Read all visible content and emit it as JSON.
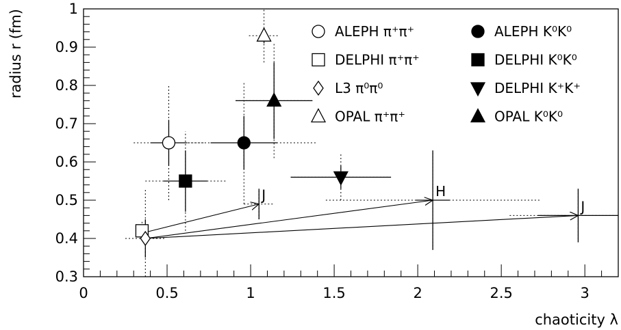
{
  "chart_data": {
    "type": "scatter",
    "xlabel": "chaoticity λ",
    "ylabel": "radius r (fm)",
    "xlim": [
      0,
      3.2
    ],
    "ylim": [
      0.3,
      1.0
    ],
    "xticks": [
      0,
      0.5,
      1,
      1.5,
      2,
      2.5,
      3
    ],
    "xtick_labels": [
      "0",
      "0.5",
      "1",
      "1.5",
      "2",
      "2.5",
      "3"
    ],
    "yticks": [
      0.3,
      0.4,
      0.5,
      0.6,
      0.7,
      0.8,
      0.9,
      1.0
    ],
    "ytick_labels": [
      "0.3",
      "0.4",
      "0.5",
      "0.6",
      "0.7",
      "0.8",
      "0.9",
      "1"
    ],
    "grid": false,
    "legend_position": "top-right",
    "series": [
      {
        "name": "ALEPH π⁺π⁺",
        "marker": "circle-open",
        "x": 0.51,
        "y": 0.65,
        "stat": {
          "xerr": 0.11,
          "yerr": 0.06
        },
        "syst": {
          "xerr": 0.21,
          "yerr": 0.15
        }
      },
      {
        "name": "DELPHI π⁺π⁺",
        "marker": "square-open",
        "x": 0.35,
        "y": 0.42,
        "stat": {
          "xerr": 0.02,
          "yerr": 0.015
        },
        "syst": {
          "xerr": 0.03,
          "yerr": 0.025
        }
      },
      {
        "name": "L3 π⁰π⁰",
        "marker": "diamond-open",
        "x": 0.37,
        "y": 0.4,
        "stat": {
          "xerr": 0.03,
          "yerr": 0.05
        },
        "syst": {
          "xerr": 0.12,
          "yerr": 0.13
        }
      },
      {
        "name": "OPAL π⁺π⁺",
        "marker": "triangle-up-open",
        "x": 1.08,
        "y": 0.93,
        "stat": {
          "xerr": 0.02,
          "yerr": 0.02
        },
        "syst": {
          "xerr": 0.09,
          "yerr": 0.07
        }
      },
      {
        "name": "ALEPH K⁰K⁰",
        "marker": "circle-filled",
        "x": 0.96,
        "y": 0.65,
        "stat": {
          "xerr": 0.2,
          "yerr": 0.07
        },
        "syst": {
          "xerr": 0.44,
          "yerr": 0.16
        }
      },
      {
        "name": "DELPHI K⁰K⁰",
        "marker": "square-filled",
        "x": 0.61,
        "y": 0.55,
        "stat": {
          "xerr": 0.13,
          "yerr": 0.08
        },
        "syst": {
          "xerr": 0.24,
          "yerr": 0.13
        }
      },
      {
        "name": "DELPHI K⁺K⁺",
        "marker": "triangle-down-filled",
        "x": 1.54,
        "y": 0.56,
        "stat": {
          "xerr": 0.3,
          "yerr": 0.03
        },
        "syst": {
          "xerr": 0.3,
          "yerr": 0.06
        }
      },
      {
        "name": "OPAL K⁰K⁰",
        "marker": "triangle-up-filled",
        "x": 1.14,
        "y": 0.76,
        "stat": {
          "xerr": 0.23,
          "yerr": 0.1
        },
        "syst": {
          "xerr": 0.23,
          "yerr": 0.15
        }
      }
    ],
    "annotations": [
      {
        "text": "J",
        "x": 1.05,
        "y": 0.49,
        "stat": {
          "xerr": 0,
          "yerr": 0.04
        },
        "syst": {
          "xerr": 0.09,
          "yerr": 0.04
        }
      },
      {
        "text": "H",
        "x": 2.09,
        "y": 0.5,
        "stat": {
          "xerr": 0.1,
          "yerr": 0.13
        },
        "syst": {
          "xerr": 0.64,
          "yerr": 0.13
        }
      },
      {
        "text": "J",
        "x": 2.96,
        "y": 0.46,
        "stat": {
          "xerr": 0.24,
          "yerr": 0.07
        },
        "syst": {
          "xerr": 0.41,
          "yerr": 0.07
        }
      }
    ],
    "arrows": [
      {
        "from": [
          0.36,
          0.415
        ],
        "to": [
          1.05,
          0.49
        ]
      },
      {
        "from": [
          0.37,
          0.4
        ],
        "to": [
          2.09,
          0.5
        ]
      },
      {
        "from": [
          0.37,
          0.4
        ],
        "to": [
          2.96,
          0.46
        ]
      }
    ]
  }
}
